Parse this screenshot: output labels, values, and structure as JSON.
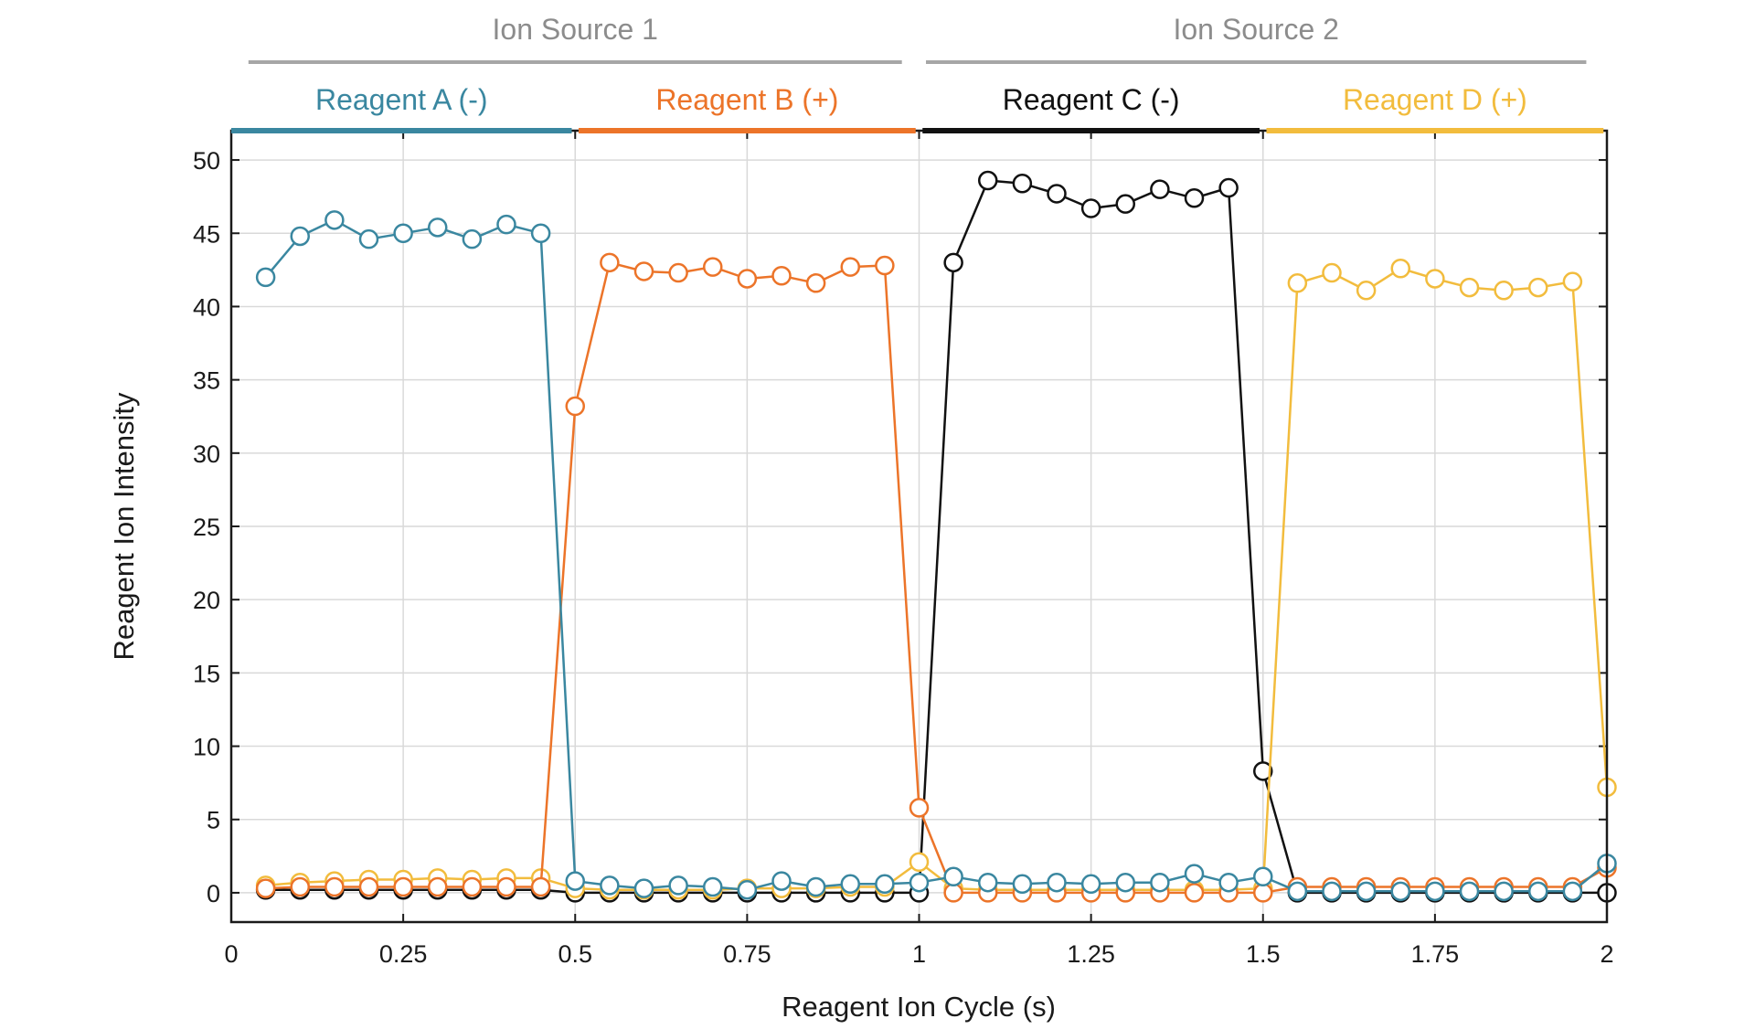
{
  "chart_data": {
    "type": "line",
    "title": "",
    "xlabel": "Reagent Ion Cycle (s)",
    "ylabel": "Reagent Ion Intensity",
    "xlim": [
      0,
      2
    ],
    "ylim": [
      -2,
      52
    ],
    "xticks": [
      0,
      0.25,
      0.5,
      0.75,
      1,
      1.25,
      1.5,
      1.75,
      2
    ],
    "xtick_labels": [
      "0",
      "0.25",
      "0.5",
      "0.75",
      "1",
      "1.25",
      "1.5",
      "1.75",
      "2"
    ],
    "yticks": [
      0,
      5,
      10,
      15,
      20,
      25,
      30,
      35,
      40,
      45,
      50
    ],
    "ytick_labels": [
      "0",
      "5",
      "10",
      "15",
      "20",
      "25",
      "30",
      "35",
      "40",
      "45",
      "50"
    ],
    "grid": true,
    "markers": "open-circle",
    "ion_sources": [
      {
        "label": "Ion Source 1",
        "x_range": [
          0.025,
          0.975
        ],
        "color": "#a6a6a6"
      },
      {
        "label": "Ion Source 2",
        "x_range": [
          1.01,
          1.97
        ],
        "color": "#a6a6a6"
      }
    ],
    "reagent_bands": [
      {
        "label": "Reagent A (-)",
        "x_range": [
          0,
          0.495
        ],
        "color": "#3a87a0"
      },
      {
        "label": "Reagent B (+)",
        "x_range": [
          0.505,
          0.995
        ],
        "color": "#ec7429"
      },
      {
        "label": "Reagent C (-)",
        "x_range": [
          1.005,
          1.495
        ],
        "color": "#111111"
      },
      {
        "label": "Reagent D (+)",
        "x_range": [
          1.505,
          1.995
        ],
        "color": "#f2bc3d"
      }
    ],
    "x": [
      0.05,
      0.1,
      0.15,
      0.2,
      0.25,
      0.3,
      0.35,
      0.4,
      0.45,
      0.5,
      0.55,
      0.6,
      0.65,
      0.7,
      0.75,
      0.8,
      0.85,
      0.9,
      0.95,
      1.0,
      1.05,
      1.1,
      1.15,
      1.2,
      1.25,
      1.3,
      1.35,
      1.4,
      1.45,
      1.5,
      1.55,
      1.6,
      1.65,
      1.7,
      1.75,
      1.8,
      1.85,
      1.9,
      1.95,
      2.0
    ],
    "series": [
      {
        "name": "Reagent C (-)",
        "color": "#111111",
        "values": [
          0.2,
          0.2,
          0.2,
          0.2,
          0.2,
          0.2,
          0.2,
          0.2,
          0.2,
          0,
          0,
          0,
          0,
          0,
          0,
          0,
          0,
          0,
          0,
          0,
          43,
          48.6,
          48.4,
          47.7,
          46.7,
          47,
          48,
          47.4,
          48.1,
          8.3,
          0,
          0,
          0,
          0,
          0,
          0,
          0,
          0,
          0,
          0
        ]
      },
      {
        "name": "Reagent D (+)",
        "color": "#f2bc3d",
        "values": [
          0.5,
          0.7,
          0.8,
          0.9,
          0.9,
          1.0,
          0.9,
          1.0,
          1.0,
          0.3,
          0.2,
          0.2,
          0.2,
          0.2,
          0.3,
          0.3,
          0.3,
          0.4,
          0.4,
          2.1,
          0.3,
          0.2,
          0.2,
          0.2,
          0.2,
          0.2,
          0.2,
          0.2,
          0.2,
          0.3,
          41.6,
          42.3,
          41.1,
          42.6,
          41.9,
          41.3,
          41.1,
          41.3,
          41.7,
          7.2
        ]
      },
      {
        "name": "Reagent B (+)",
        "color": "#ec7429",
        "values": [
          0.3,
          0.4,
          0.4,
          0.4,
          0.4,
          0.4,
          0.4,
          0.4,
          0.4,
          33.2,
          43,
          42.4,
          42.3,
          42.7,
          41.9,
          42.1,
          41.6,
          42.7,
          42.8,
          5.8,
          0,
          0,
          0,
          0,
          0,
          0,
          0,
          0,
          0,
          0,
          0.4,
          0.4,
          0.4,
          0.4,
          0.4,
          0.4,
          0.4,
          0.4,
          0.4,
          1.7
        ]
      },
      {
        "name": "Reagent A (-)",
        "color": "#3a87a0",
        "values": [
          42,
          44.8,
          45.9,
          44.6,
          45,
          45.4,
          44.6,
          45.6,
          45,
          0.8,
          0.5,
          0.3,
          0.5,
          0.4,
          0.2,
          0.8,
          0.4,
          0.6,
          0.6,
          0.7,
          1.1,
          0.7,
          0.6,
          0.7,
          0.6,
          0.7,
          0.7,
          1.3,
          0.7,
          1.1,
          0.1,
          0.1,
          0.1,
          0.1,
          0.1,
          0.1,
          0.1,
          0.1,
          0.1,
          2.0
        ]
      }
    ]
  }
}
